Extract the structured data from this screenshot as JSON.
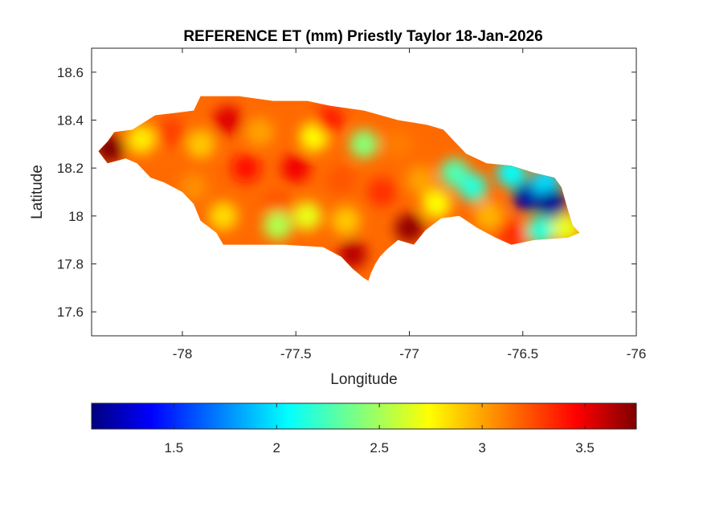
{
  "chart_data": {
    "type": "heatmap",
    "title": "REFERENCE ET (mm) Priestly Taylor 18-Jan-2026",
    "xlabel": "Longitude",
    "ylabel": "Latitude",
    "xlim": [
      -78.4,
      -76.0
    ],
    "ylim": [
      17.5,
      18.7
    ],
    "xticks": [
      -78,
      -77.5,
      -77,
      -76.5,
      -76
    ],
    "xtick_labels": [
      "-78",
      "-77.5",
      "-77",
      "-76.5",
      "-76"
    ],
    "yticks": [
      17.6,
      17.8,
      18.0,
      18.2,
      18.4,
      18.6
    ],
    "ytick_labels": [
      "17.6",
      "17.8",
      "18",
      "18.2",
      "18.4",
      "18.6"
    ],
    "grid": false,
    "colormap": "jet",
    "colorbar": {
      "orientation": "horizontal",
      "position": "below",
      "range": [
        1.1,
        3.75
      ],
      "ticks": [
        1.5,
        2.0,
        2.5,
        3.0,
        3.5
      ],
      "tick_labels": [
        "1.5",
        "2",
        "2.5",
        "3",
        "3.5"
      ]
    },
    "island_outline": [
      [
        -78.37,
        18.27
      ],
      [
        -78.33,
        18.31
      ],
      [
        -78.3,
        18.35
      ],
      [
        -78.22,
        18.36
      ],
      [
        -78.12,
        18.42
      ],
      [
        -78.03,
        18.43
      ],
      [
        -77.95,
        18.44
      ],
      [
        -77.92,
        18.5
      ],
      [
        -77.75,
        18.5
      ],
      [
        -77.6,
        18.48
      ],
      [
        -77.45,
        18.48
      ],
      [
        -77.35,
        18.46
      ],
      [
        -77.2,
        18.44
      ],
      [
        -77.05,
        18.4
      ],
      [
        -76.92,
        18.38
      ],
      [
        -76.85,
        18.36
      ],
      [
        -76.8,
        18.31
      ],
      [
        -76.75,
        18.26
      ],
      [
        -76.66,
        18.22
      ],
      [
        -76.55,
        18.21
      ],
      [
        -76.45,
        18.18
      ],
      [
        -76.36,
        18.16
      ],
      [
        -76.33,
        18.12
      ],
      [
        -76.3,
        18.02
      ],
      [
        -76.28,
        17.96
      ],
      [
        -76.25,
        17.93
      ],
      [
        -76.3,
        17.91
      ],
      [
        -76.45,
        17.9
      ],
      [
        -76.55,
        17.88
      ],
      [
        -76.62,
        17.91
      ],
      [
        -76.7,
        17.95
      ],
      [
        -76.78,
        18.0
      ],
      [
        -76.86,
        17.99
      ],
      [
        -76.93,
        17.94
      ],
      [
        -76.98,
        17.88
      ],
      [
        -77.05,
        17.9
      ],
      [
        -77.1,
        17.86
      ],
      [
        -77.13,
        17.83
      ],
      [
        -77.15,
        17.8
      ],
      [
        -77.17,
        17.76
      ],
      [
        -77.18,
        17.73
      ],
      [
        -77.2,
        17.74
      ],
      [
        -77.25,
        17.78
      ],
      [
        -77.3,
        17.83
      ],
      [
        -77.38,
        17.87
      ],
      [
        -77.55,
        17.88
      ],
      [
        -77.7,
        17.88
      ],
      [
        -77.82,
        17.88
      ],
      [
        -77.85,
        17.93
      ],
      [
        -77.92,
        17.98
      ],
      [
        -77.95,
        18.05
      ],
      [
        -78.0,
        18.1
      ],
      [
        -78.08,
        18.14
      ],
      [
        -78.14,
        18.16
      ],
      [
        -78.2,
        18.22
      ],
      [
        -78.25,
        18.24
      ],
      [
        -78.33,
        18.22
      ]
    ],
    "hotspots": [
      {
        "lon": -78.32,
        "lat": 18.28,
        "value": 3.75
      },
      {
        "lon": -78.18,
        "lat": 18.32,
        "value": 2.8
      },
      {
        "lon": -78.05,
        "lat": 18.35,
        "value": 3.25
      },
      {
        "lon": -77.92,
        "lat": 18.3,
        "value": 2.9
      },
      {
        "lon": -77.95,
        "lat": 18.12,
        "value": 3.05
      },
      {
        "lon": -77.8,
        "lat": 18.4,
        "value": 3.5
      },
      {
        "lon": -77.72,
        "lat": 18.2,
        "value": 3.4
      },
      {
        "lon": -77.82,
        "lat": 18.0,
        "value": 2.85
      },
      {
        "lon": -77.66,
        "lat": 18.35,
        "value": 3.0
      },
      {
        "lon": -77.58,
        "lat": 18.05,
        "value": 3.2
      },
      {
        "lon": -77.58,
        "lat": 17.96,
        "value": 2.55
      },
      {
        "lon": -77.5,
        "lat": 18.2,
        "value": 3.45
      },
      {
        "lon": -77.45,
        "lat": 18.0,
        "value": 2.7
      },
      {
        "lon": -77.42,
        "lat": 18.33,
        "value": 2.75
      },
      {
        "lon": -77.35,
        "lat": 18.4,
        "value": 3.35
      },
      {
        "lon": -77.3,
        "lat": 18.15,
        "value": 3.2
      },
      {
        "lon": -77.28,
        "lat": 17.98,
        "value": 2.9
      },
      {
        "lon": -77.25,
        "lat": 17.84,
        "value": 3.6
      },
      {
        "lon": -77.2,
        "lat": 18.3,
        "value": 2.45
      },
      {
        "lon": -77.12,
        "lat": 18.1,
        "value": 3.3
      },
      {
        "lon": -77.05,
        "lat": 18.3,
        "value": 3.1
      },
      {
        "lon": -77.0,
        "lat": 17.95,
        "value": 3.7
      },
      {
        "lon": -76.95,
        "lat": 18.15,
        "value": 3.0
      },
      {
        "lon": -76.88,
        "lat": 18.05,
        "value": 2.75
      },
      {
        "lon": -76.8,
        "lat": 18.18,
        "value": 2.3
      },
      {
        "lon": -76.72,
        "lat": 18.12,
        "value": 2.2
      },
      {
        "lon": -76.65,
        "lat": 18.0,
        "value": 2.95
      },
      {
        "lon": -76.55,
        "lat": 17.92,
        "value": 3.3
      },
      {
        "lon": -76.55,
        "lat": 18.18,
        "value": 2.1
      },
      {
        "lon": -76.48,
        "lat": 18.08,
        "value": 1.2
      },
      {
        "lon": -76.4,
        "lat": 18.14,
        "value": 2.0
      },
      {
        "lon": -76.37,
        "lat": 18.05,
        "value": 1.15
      },
      {
        "lon": -76.42,
        "lat": 17.94,
        "value": 2.2
      },
      {
        "lon": -76.31,
        "lat": 17.95,
        "value": 2.7
      }
    ]
  }
}
